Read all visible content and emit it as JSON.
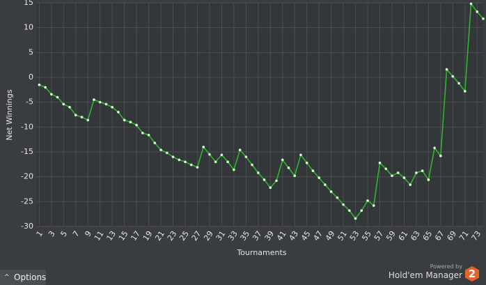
{
  "chart_data": {
    "type": "line",
    "x_label": "Tournaments",
    "y_label": "Net Winnings",
    "x": [
      1,
      2,
      3,
      4,
      5,
      6,
      7,
      8,
      9,
      10,
      11,
      12,
      13,
      14,
      15,
      16,
      17,
      18,
      19,
      20,
      21,
      22,
      23,
      24,
      25,
      26,
      27,
      28,
      29,
      30,
      31,
      32,
      33,
      34,
      35,
      36,
      37,
      38,
      39,
      40,
      41,
      42,
      43,
      44,
      45,
      46,
      47,
      48,
      49,
      50,
      51,
      52,
      53,
      54,
      55,
      56,
      57,
      58,
      59,
      60,
      61,
      62,
      63,
      64,
      65,
      66,
      67,
      68,
      69,
      70,
      71,
      72,
      73,
      74
    ],
    "series": [
      {
        "name": "Net Winnings",
        "color": "#2fb52f",
        "marker_color": "#d8ffd0",
        "values": [
          -1.5,
          -2,
          -3.4,
          -4,
          -5.4,
          -6,
          -7.6,
          -8,
          -8.6,
          -4.5,
          -5,
          -5.4,
          -6,
          -7,
          -8.6,
          -9,
          -9.6,
          -11.2,
          -11.6,
          -13.2,
          -14.6,
          -15.2,
          -16,
          -16.6,
          -17,
          -17.6,
          -18.1,
          -14,
          -15.5,
          -17,
          -15.6,
          -17,
          -18.6,
          -14.6,
          -16,
          -17.6,
          -19.2,
          -20.6,
          -22.2,
          -20.8,
          -16.6,
          -18.2,
          -19.8,
          -15.6,
          -17.2,
          -18.8,
          -20.2,
          -21.6,
          -23,
          -24.2,
          -25.6,
          -26.8,
          -28.4,
          -26.8,
          -24.8,
          -25.8,
          -17.2,
          -18.4,
          -19.8,
          -19.2,
          -20.2,
          -21.6,
          -19.2,
          -18.8,
          -20.6,
          -14.2,
          -15.8,
          1.6,
          0.2,
          -1.2,
          -2.8,
          14.8,
          13.2,
          11.8
        ]
      }
    ],
    "xlim": [
      0.5,
      74
    ],
    "xticks": [
      1,
      3,
      5,
      7,
      9,
      11,
      13,
      15,
      17,
      19,
      21,
      23,
      25,
      27,
      29,
      31,
      33,
      35,
      37,
      39,
      41,
      43,
      45,
      47,
      49,
      51,
      53,
      55,
      57,
      59,
      61,
      63,
      65,
      67,
      69,
      71,
      73
    ],
    "ylim": [
      -30,
      15
    ],
    "yticks": [
      15,
      10,
      5,
      0,
      -5,
      -10,
      -15,
      -20,
      -25,
      -30
    ],
    "grid": true
  },
  "ui": {
    "options": "Options",
    "powered_by": "Powered by",
    "brand": "Hold'em Manager",
    "logo": "2"
  }
}
